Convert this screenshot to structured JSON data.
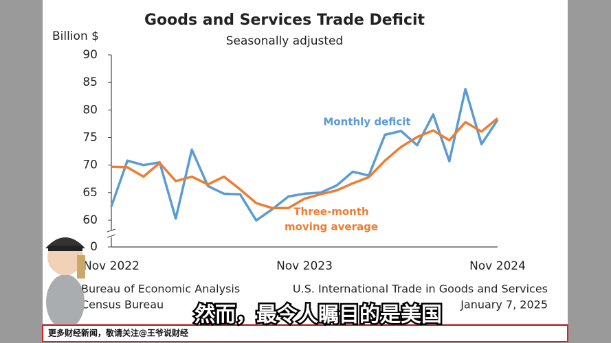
{
  "chart_data": {
    "type": "line",
    "title": "Goods and Services Trade Deficit",
    "subtitle": "Seasonally adjusted",
    "y_label": "Billion $",
    "categories": [
      "Nov 2022",
      null,
      null,
      null,
      null,
      null,
      null,
      null,
      null,
      null,
      null,
      null,
      "Nov 2023",
      null,
      null,
      null,
      null,
      null,
      null,
      null,
      null,
      null,
      null,
      null,
      "Nov 2024"
    ],
    "series": [
      {
        "name": "Monthly deficit",
        "color": "#5b9bd5",
        "values": [
          62.5,
          70.8,
          70.0,
          70.5,
          60.3,
          72.8,
          66.2,
          64.8,
          64.7,
          59.6,
          62.0,
          64.3,
          64.8,
          65.0,
          66.3,
          68.8,
          68.1,
          75.5,
          76.2,
          73.6,
          79.2,
          70.7,
          83.8,
          73.8,
          78.2
        ]
      },
      {
        "name": "Three-month moving average",
        "label_lines": [
          "Three-month",
          "moving average"
        ],
        "color": "#ed7d31",
        "values": [
          69.7,
          69.6,
          67.9,
          70.4,
          67.1,
          67.9,
          66.5,
          67.9,
          65.6,
          63.1,
          62.2,
          62.2,
          63.9,
          64.7,
          65.4,
          66.7,
          67.8,
          70.8,
          73.3,
          75.1,
          76.3,
          74.5,
          77.8,
          76.1,
          78.5
        ]
      }
    ],
    "ylim": [
      0,
      90
    ],
    "yticks": [
      0,
      60,
      65,
      70,
      75,
      80,
      85,
      90
    ],
    "axis_break": true,
    "grid": false,
    "source_left": [
      "Bureau of Economic Analysis",
      "Census Bureau"
    ],
    "source_right": [
      "U.S. International Trade in Goods and Services",
      "January 7, 2025"
    ]
  },
  "overlay": {
    "caption": "然而，最令人瞩目的是美国",
    "banner": "更多财经新闻，敬请关注@王爷说财经"
  }
}
